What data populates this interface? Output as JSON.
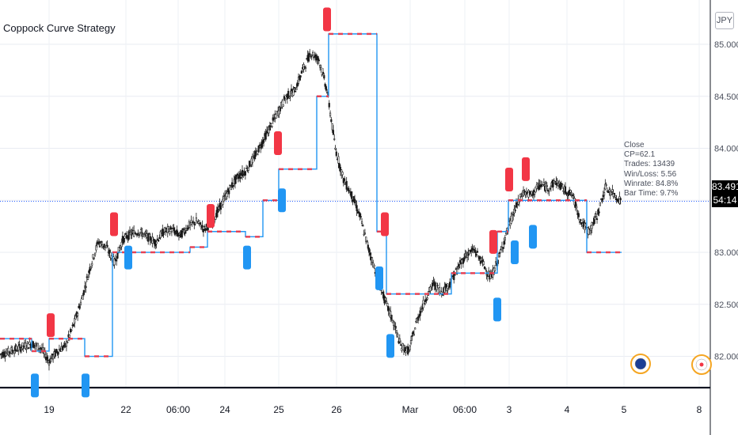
{
  "chart_title": "Coppock Curve Strategy",
  "currency_button": "JPY",
  "price_tag": "83.491",
  "countdown_tag": "54:14",
  "info_panel": {
    "label": "Close",
    "lines": [
      "CP=62.1",
      "Trades: 13439",
      "Win/Loss: 5.56",
      "Winrate: 84.8%",
      "Bar Time: 9.7%"
    ]
  },
  "colors": {
    "up_candle": "#1a1a1a",
    "down_candle": "#1a1a1a",
    "bull_marker": "#2196f3",
    "bear_marker": "#f23645",
    "step_line": "#2196f3",
    "step_line_up": "#f23645",
    "current_price_line": "#2962ff"
  },
  "event_icons": [
    "australia-flag-icon",
    "japan-flag-icon"
  ],
  "chart_data": {
    "type": "candlestick",
    "title": "Coppock Curve Strategy",
    "x_tick_labels": [
      "19",
      "22",
      "06:00",
      "24",
      "25",
      "26",
      "Mar",
      "06:00",
      "3",
      "4",
      "5",
      "8"
    ],
    "y_tick_labels": [
      "82.000",
      "82.500",
      "83.000",
      "83.500",
      "84.000",
      "84.500",
      "85.000"
    ],
    "ylim": [
      81.7,
      85.35
    ],
    "current_price": 83.491,
    "close_path": [
      [
        0,
        82.02
      ],
      [
        0.6,
        82.04
      ],
      [
        1.2,
        82.07
      ],
      [
        1.8,
        82.1
      ],
      [
        2.4,
        82.12
      ],
      [
        3.0,
        82.08
      ],
      [
        3.6,
        81.95
      ],
      [
        4.2,
        82.05
      ],
      [
        4.8,
        82.1
      ],
      [
        5.4,
        82.3
      ],
      [
        6.0,
        82.55
      ],
      [
        6.6,
        82.85
      ],
      [
        7.2,
        83.1
      ],
      [
        7.8,
        83.05
      ],
      [
        8.4,
        82.9
      ],
      [
        9.0,
        83.12
      ],
      [
        9.6,
        83.18
      ],
      [
        10.2,
        83.2
      ],
      [
        10.8,
        83.15
      ],
      [
        11.4,
        83.1
      ],
      [
        12.0,
        83.2
      ],
      [
        12.6,
        83.22
      ],
      [
        13.2,
        83.16
      ],
      [
        13.8,
        83.25
      ],
      [
        14.4,
        83.3
      ],
      [
        15.0,
        83.22
      ],
      [
        15.6,
        83.3
      ],
      [
        16.2,
        83.45
      ],
      [
        16.8,
        83.6
      ],
      [
        17.4,
        83.72
      ],
      [
        18.0,
        83.78
      ],
      [
        18.6,
        83.9
      ],
      [
        19.2,
        84.05
      ],
      [
        19.8,
        84.2
      ],
      [
        20.4,
        84.35
      ],
      [
        21.0,
        84.5
      ],
      [
        21.6,
        84.55
      ],
      [
        22.2,
        84.75
      ],
      [
        22.8,
        84.92
      ],
      [
        23.4,
        84.85
      ],
      [
        24.0,
        84.55
      ],
      [
        24.6,
        84.0
      ],
      [
        25.2,
        83.7
      ],
      [
        25.8,
        83.55
      ],
      [
        26.4,
        83.35
      ],
      [
        27.0,
        83.05
      ],
      [
        27.6,
        82.8
      ],
      [
        28.2,
        82.55
      ],
      [
        28.8,
        82.35
      ],
      [
        29.4,
        82.1
      ],
      [
        30.0,
        82.05
      ],
      [
        30.6,
        82.35
      ],
      [
        31.2,
        82.55
      ],
      [
        31.8,
        82.7
      ],
      [
        32.4,
        82.62
      ],
      [
        33.0,
        82.7
      ],
      [
        33.6,
        82.85
      ],
      [
        34.2,
        82.98
      ],
      [
        34.8,
        83.02
      ],
      [
        35.4,
        82.9
      ],
      [
        36.0,
        82.75
      ],
      [
        36.6,
        82.95
      ],
      [
        37.2,
        83.2
      ],
      [
        37.8,
        83.42
      ],
      [
        38.4,
        83.58
      ],
      [
        39.0,
        83.55
      ],
      [
        39.6,
        83.65
      ],
      [
        40.2,
        83.62
      ],
      [
        40.8,
        83.68
      ],
      [
        41.4,
        83.6
      ],
      [
        42.0,
        83.55
      ],
      [
        42.6,
        83.3
      ],
      [
        43.2,
        83.2
      ],
      [
        43.8,
        83.35
      ],
      [
        44.4,
        83.62
      ],
      [
        45.0,
        83.56
      ],
      [
        45.6,
        83.49
      ]
    ],
    "x_span": [
      0,
      45.6
    ]
  }
}
